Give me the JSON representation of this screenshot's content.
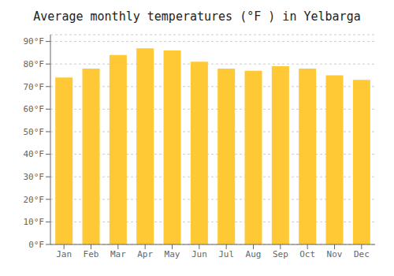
{
  "chart_data": {
    "type": "bar",
    "title": "Average monthly temperatures (°F ) in Yelbarga",
    "categories": [
      "Jan",
      "Feb",
      "Mar",
      "Apr",
      "May",
      "Jun",
      "Jul",
      "Aug",
      "Sep",
      "Oct",
      "Nov",
      "Dec"
    ],
    "values": [
      74,
      78,
      84,
      87,
      86,
      81,
      78,
      77,
      79,
      78,
      75,
      73
    ],
    "color": "#FFC835",
    "ylim": [
      0,
      93
    ],
    "yticks": [
      {
        "value": 0,
        "label": "0°F"
      },
      {
        "value": 10,
        "label": "10°F"
      },
      {
        "value": 20,
        "label": "20°F"
      },
      {
        "value": 30,
        "label": "30°F"
      },
      {
        "value": 40,
        "label": "40°F"
      },
      {
        "value": 50,
        "label": "50°F"
      },
      {
        "value": 60,
        "label": "60°F"
      },
      {
        "value": 70,
        "label": "70°F"
      },
      {
        "value": 80,
        "label": "80°F"
      },
      {
        "value": 90,
        "label": "90°F"
      }
    ],
    "grid": true
  }
}
